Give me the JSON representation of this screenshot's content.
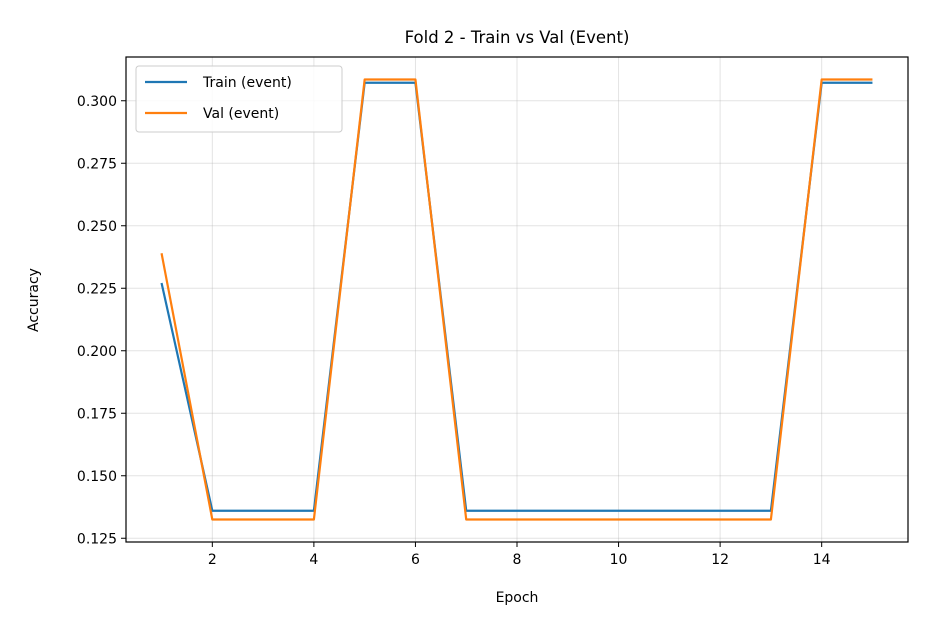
{
  "chart_data": {
    "type": "line",
    "title": "Fold 2 - Train vs Val (Event)",
    "xlabel": "Epoch",
    "ylabel": "Accuracy",
    "xlim": [
      0.3,
      15.7
    ],
    "ylim": [
      0.1235,
      0.3175
    ],
    "xticks": [
      2,
      4,
      6,
      8,
      10,
      12,
      14
    ],
    "xtick_labels": [
      "2",
      "4",
      "6",
      "8",
      "10",
      "12",
      "14"
    ],
    "yticks": [
      0.125,
      0.15,
      0.175,
      0.2,
      0.225,
      0.25,
      0.275,
      0.3
    ],
    "ytick_labels": [
      "0.125",
      "0.150",
      "0.175",
      "0.200",
      "0.225",
      "0.250",
      "0.275",
      "0.300"
    ],
    "grid": true,
    "legend_position": "upper left",
    "x": [
      1,
      2,
      3,
      4,
      5,
      6,
      7,
      8,
      9,
      10,
      11,
      12,
      13,
      14,
      15
    ],
    "series": [
      {
        "name": "Train (event)",
        "color": "#1f77b4",
        "values": [
          0.2271,
          0.136,
          0.136,
          0.136,
          0.3072,
          0.3072,
          0.136,
          0.136,
          0.136,
          0.136,
          0.136,
          0.136,
          0.136,
          0.3072,
          0.3072
        ]
      },
      {
        "name": "Val (event)",
        "color": "#ff7f0e",
        "values": [
          0.239,
          0.1325,
          0.1325,
          0.1325,
          0.3085,
          0.3085,
          0.1325,
          0.1325,
          0.1325,
          0.1325,
          0.1325,
          0.1325,
          0.1325,
          0.3085,
          0.3085
        ]
      }
    ]
  }
}
